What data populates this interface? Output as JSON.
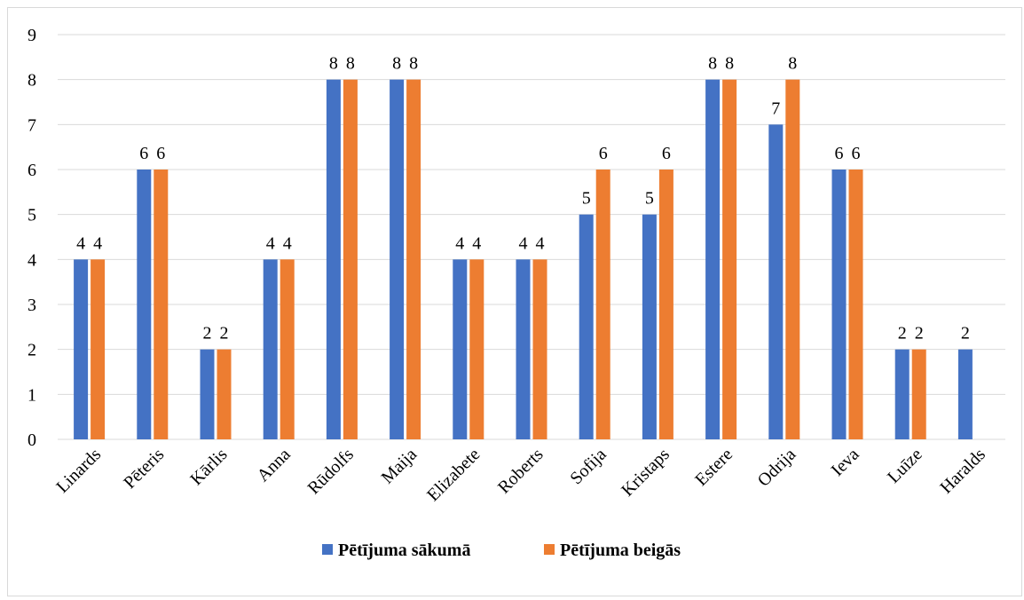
{
  "chart_data": {
    "type": "bar",
    "categories": [
      "Linards",
      "Pēteris",
      "Kārlis",
      "Anna",
      "Rūdolfs",
      "Maija",
      "Elizabete",
      "Roberts",
      "Sofija",
      "Kristaps",
      "Estere",
      "Odrija",
      "Ieva",
      "Luīze",
      "Haralds"
    ],
    "series": [
      {
        "name": "Pētījuma sākumā",
        "color": "#4472c4",
        "values": [
          4,
          6,
          2,
          4,
          8,
          8,
          4,
          4,
          5,
          5,
          8,
          7,
          6,
          2,
          2
        ]
      },
      {
        "name": "Pētījuma beigās",
        "color": "#ed7d31",
        "values": [
          4,
          6,
          2,
          4,
          8,
          8,
          4,
          4,
          6,
          6,
          8,
          8,
          6,
          2,
          null
        ]
      }
    ],
    "ylim": [
      0,
      9
    ],
    "yticks": [
      0,
      1,
      2,
      3,
      4,
      5,
      6,
      7,
      8,
      9
    ],
    "grid": true,
    "data_labels": true,
    "legend_position": "bottom",
    "title": "",
    "xlabel": "",
    "ylabel": ""
  }
}
